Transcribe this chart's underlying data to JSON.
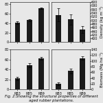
{
  "categories": [
    "RB3",
    "RB5",
    "RB9"
  ],
  "top_left": {
    "values": [
      42,
      47,
      72
    ],
    "errors": [
      3,
      2,
      2
    ],
    "ylabel": "",
    "ylim": [
      0,
      85
    ],
    "yticks": [
      0,
      20,
      40,
      60,
      80
    ]
  },
  "top_right": {
    "values": [
      530,
      505,
      450
    ],
    "errors": [
      35,
      28,
      18
    ],
    "ylabel": "Density (kg m⁻³)",
    "ylim": [
      380,
      600
    ],
    "yticks": [
      400,
      420,
      440,
      460,
      480,
      500,
      520,
      540,
      560,
      580,
      600
    ]
  },
  "bottom_left": {
    "values": [
      22,
      48,
      62
    ],
    "errors": [
      3,
      4,
      3
    ],
    "ylabel": "",
    "ylim": [
      0,
      80
    ],
    "yticks": [
      0,
      20,
      40,
      60,
      80
    ]
  },
  "bottom_right": {
    "values": [
      20,
      65,
      110
    ],
    "errors": [
      5,
      8,
      5
    ],
    "ylabel": "Biomass (Mg ha⁻¹)",
    "ylim": [
      0,
      140
    ],
    "yticks": [
      0,
      20,
      40,
      60,
      80,
      100,
      120,
      140
    ]
  },
  "bar_color": "#1a1a1a",
  "bar_width": 0.45,
  "caption": "Fig. 2:Showing the structural properties of different aged rubber plantations.",
  "caption_fontsize": 3.8,
  "tick_fontsize": 3.5,
  "label_fontsize": 4.0,
  "figure_facecolor": "#e8e8e8",
  "axes_facecolor": "#e8e8e8"
}
